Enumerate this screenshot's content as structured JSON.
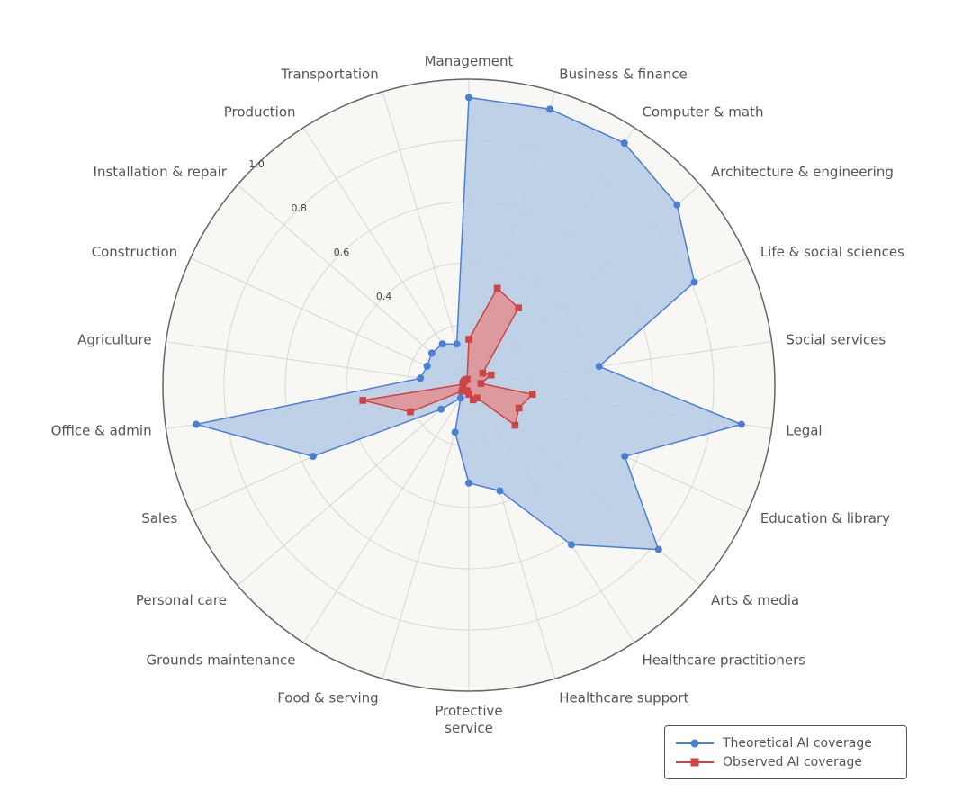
{
  "chart_data": {
    "type": "radar",
    "title": "",
    "categories": [
      "Management",
      "Business & finance",
      "Computer & math",
      "Architecture & engineering",
      "Life & social sciences",
      "Social services",
      "Legal",
      "Education & library",
      "Arts & media",
      "Healthcare practitioners",
      "Healthcare support",
      "Protective\nservice",
      "Food & serving",
      "Grounds maintenance",
      "Personal care",
      "Sales",
      "Office & admin",
      "Agriculture",
      "Construction",
      "Installation & repair",
      "Production",
      "Transportation"
    ],
    "radial_ticks": [
      "0.4",
      "0.6",
      "0.8",
      "1.0"
    ],
    "rlim": [
      0,
      1.0
    ],
    "grid": true,
    "legend_position": "bottom-right",
    "series": [
      {
        "name": "Theoretical AI coverage",
        "color": "#4a7fd6",
        "fill": "#b8cce6",
        "marker": "circle",
        "values": [
          0.94,
          0.94,
          0.94,
          0.9,
          0.81,
          0.43,
          0.9,
          0.56,
          0.82,
          0.62,
          0.36,
          0.32,
          0.16,
          0.05,
          0.12,
          0.56,
          0.9,
          0.16,
          0.15,
          0.16,
          0.16,
          0.14
        ]
      },
      {
        "name": "Observed AI coverage",
        "color": "#cc4444",
        "fill": "#e09090",
        "marker": "square",
        "values": [
          0.15,
          0.33,
          0.3,
          0.06,
          0.08,
          0.04,
          0.21,
          0.18,
          0.2,
          0.05,
          0.05,
          0.03,
          0.02,
          0.02,
          0.03,
          0.21,
          0.35,
          0.02,
          0.02,
          0.02,
          0.02,
          0.02
        ]
      }
    ]
  }
}
